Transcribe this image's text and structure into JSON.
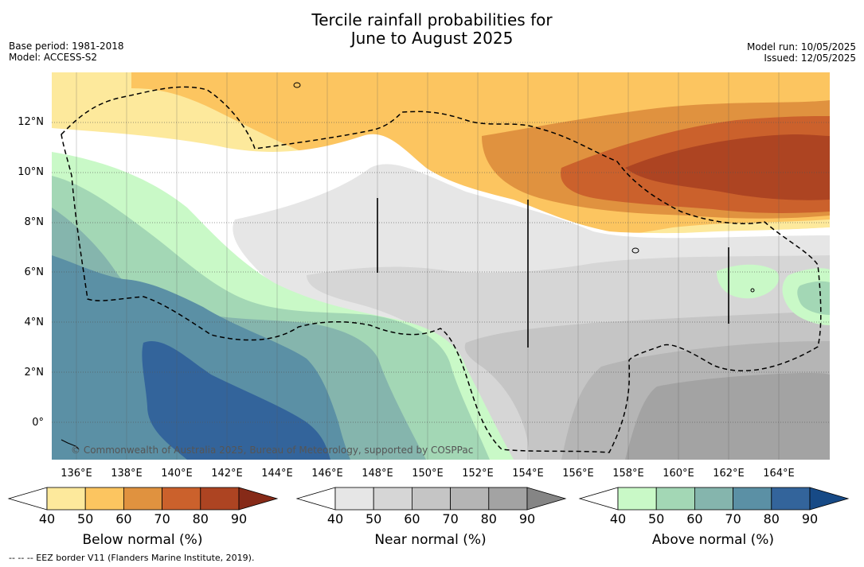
{
  "title_line1": "Tercile rainfall probabilities for",
  "title_line2": "June to August 2025",
  "base_period": "Base period: 1981-2018",
  "model": "Model: ACCESS-S2",
  "model_run": "Model run: 10/05/2025",
  "issued": "Issued: 12/05/2025",
  "credit": "© Commonwealth of Australia 2025, Bureau of Meteorology, supported by COSPPac",
  "footnote": "--  --  -- EEZ border V11 (Flanders Marine Institute, 2019).",
  "lat_ticks": [
    "12°N",
    "10°N",
    "8°N",
    "6°N",
    "4°N",
    "2°N",
    "0°"
  ],
  "lon_ticks": [
    "136°E",
    "138°E",
    "140°E",
    "142°E",
    "144°E",
    "146°E",
    "148°E",
    "150°E",
    "152°E",
    "154°E",
    "156°E",
    "158°E",
    "160°E",
    "162°E",
    "164°E"
  ],
  "colorbars": [
    {
      "label": "Below normal (%)",
      "ticks": [
        "40",
        "50",
        "60",
        "70",
        "80",
        "90"
      ],
      "colors": [
        "#fff",
        "#fde99c",
        "#fcc560",
        "#e0923f",
        "#cb612c",
        "#ad4422",
        "#862a18"
      ]
    },
    {
      "label": "Near normal (%)",
      "ticks": [
        "40",
        "50",
        "60",
        "70",
        "80",
        "90"
      ],
      "colors": [
        "#fff",
        "#e6e6e6",
        "#d6d6d6",
        "#c5c5c5",
        "#b5b5b5",
        "#a3a3a3",
        "#858585"
      ]
    },
    {
      "label": "Above normal (%)",
      "ticks": [
        "40",
        "50",
        "60",
        "70",
        "80",
        "90"
      ],
      "colors": [
        "#fff",
        "#c9f9c7",
        "#a3d7b5",
        "#85b5ad",
        "#5b90a5",
        "#33649b",
        "#174a86"
      ]
    }
  ]
}
